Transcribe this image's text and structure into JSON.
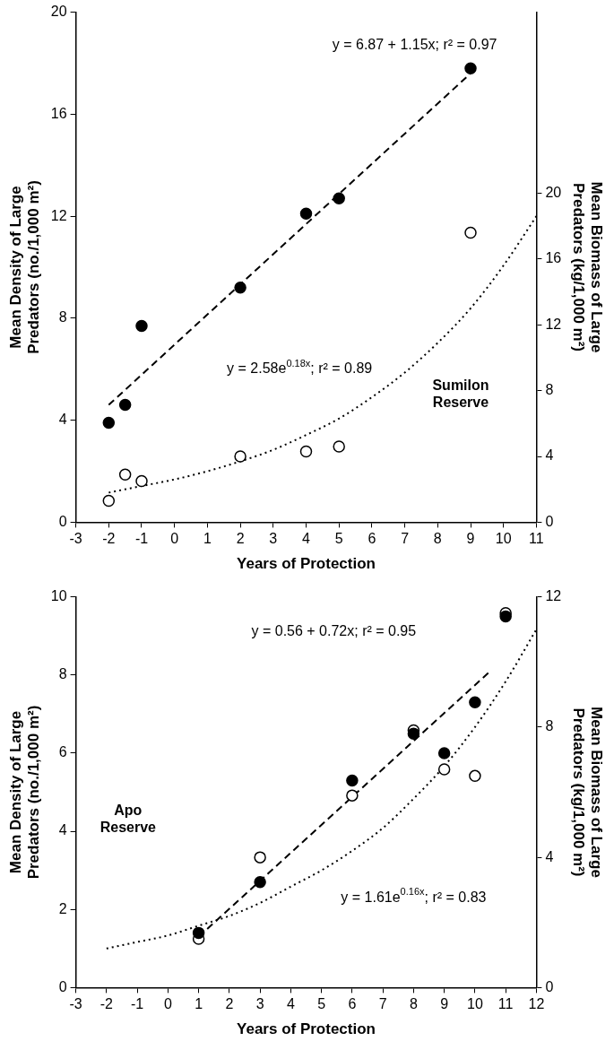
{
  "chart_data": [
    {
      "type": "scatter",
      "x_label": "Years of Protection",
      "y_label": "Mean Density of Large Predators (no./1,000 m²)",
      "y2_label": "Mean Biomass of Large Predators (kg/1,000 m²)",
      "xlim": [
        -3,
        11
      ],
      "xticks": [
        -3,
        -2,
        -1,
        0,
        1,
        2,
        3,
        4,
        5,
        6,
        7,
        8,
        9,
        10,
        11
      ],
      "ylim": [
        0,
        20
      ],
      "yticks": [
        0,
        4,
        8,
        12,
        16,
        20
      ],
      "y2lim": [
        0,
        31
      ],
      "y2ticks": [
        0,
        4,
        8,
        12,
        16,
        20
      ],
      "grid": false,
      "series": [
        {
          "type": "line",
          "line_style": "dashed",
          "marker": "none",
          "color": "#000000",
          "x": [
            -2,
            9
          ],
          "values": [
            4.6,
            17.6
          ]
        },
        {
          "type": "line",
          "line_style": "dotted",
          "marker": "none",
          "color": "#000000",
          "axis": "y2",
          "x": [
            -2,
            -1,
            0,
            1,
            2,
            3,
            4,
            5,
            6,
            7,
            8,
            9,
            10,
            11
          ],
          "values": [
            1.8,
            2.2,
            2.6,
            3.1,
            3.7,
            4.4,
            5.3,
            6.3,
            7.6,
            9.1,
            10.9,
            13.0,
            15.6,
            18.6
          ]
        },
        {
          "type": "scatter",
          "marker": "filled_circle",
          "color": "#000000",
          "x": [
            -2,
            -1.5,
            -1,
            2,
            4,
            5,
            9
          ],
          "values": [
            3.9,
            4.6,
            7.7,
            9.2,
            12.1,
            12.7,
            17.8
          ]
        },
        {
          "type": "scatter",
          "marker": "open_circle",
          "color": "#000000",
          "axis": "y2",
          "x": [
            -2,
            -1.5,
            -1,
            2,
            4,
            5,
            9
          ],
          "values": [
            1.3,
            2.9,
            2.5,
            4.0,
            4.3,
            4.6,
            17.6
          ]
        }
      ],
      "annotations": [
        {
          "text": "y = 6.87 + 1.15x; r² = 0.97"
        },
        {
          "text": "y = 2.58e",
          "superscript": "0.18x",
          "text_after": "; r² = 0.89"
        },
        {
          "text": "Sumilon Reserve"
        }
      ]
    },
    {
      "type": "scatter",
      "x_label": "Years of Protection",
      "y_label": "Mean Density of Large Predators (no./1,000 m²)",
      "y2_label": "Mean Biomass of Large Predators (kg/1,000 m²)",
      "xlim": [
        -3,
        12
      ],
      "xticks": [
        -3,
        -2,
        -1,
        0,
        1,
        2,
        3,
        4,
        5,
        6,
        7,
        8,
        9,
        10,
        11,
        12
      ],
      "ylim": [
        0,
        10
      ],
      "yticks": [
        0,
        2,
        4,
        6,
        8,
        10
      ],
      "y2lim": [
        0,
        12
      ],
      "y2ticks": [
        0,
        4,
        8,
        12
      ],
      "grid": false,
      "series": [
        {
          "type": "line",
          "line_style": "dashed",
          "marker": "none",
          "color": "#000000",
          "x": [
            1,
            10.5
          ],
          "values": [
            1.3,
            8.1
          ]
        },
        {
          "type": "line",
          "line_style": "dotted",
          "marker": "none",
          "color": "#000000",
          "axis": "y2",
          "x": [
            -2,
            -1,
            0,
            1,
            2,
            3,
            4,
            5,
            6,
            7,
            8,
            9,
            10,
            11,
            12
          ],
          "values": [
            1.2,
            1.4,
            1.6,
            1.9,
            2.2,
            2.6,
            3.1,
            3.6,
            4.2,
            4.9,
            5.8,
            6.8,
            8.0,
            9.4,
            11.0
          ]
        },
        {
          "type": "scatter",
          "marker": "filled_circle",
          "color": "#000000",
          "x": [
            1,
            3,
            6,
            8,
            9,
            10,
            11
          ],
          "values": [
            1.4,
            2.7,
            5.3,
            6.5,
            6.0,
            7.3,
            9.5
          ]
        },
        {
          "type": "scatter",
          "marker": "open_circle",
          "color": "#000000",
          "axis": "y2",
          "x": [
            1,
            3,
            6,
            8,
            9,
            10,
            11
          ],
          "values": [
            1.5,
            4.0,
            5.9,
            7.9,
            6.7,
            6.5,
            11.5
          ]
        }
      ],
      "annotations": [
        {
          "text": "y = 0.56 + 0.72x; r² = 0.95"
        },
        {
          "text": "y = 1.61e",
          "superscript": "0.16x",
          "text_after": "; r² = 0.83"
        },
        {
          "text": "Apo Reserve"
        }
      ]
    }
  ]
}
